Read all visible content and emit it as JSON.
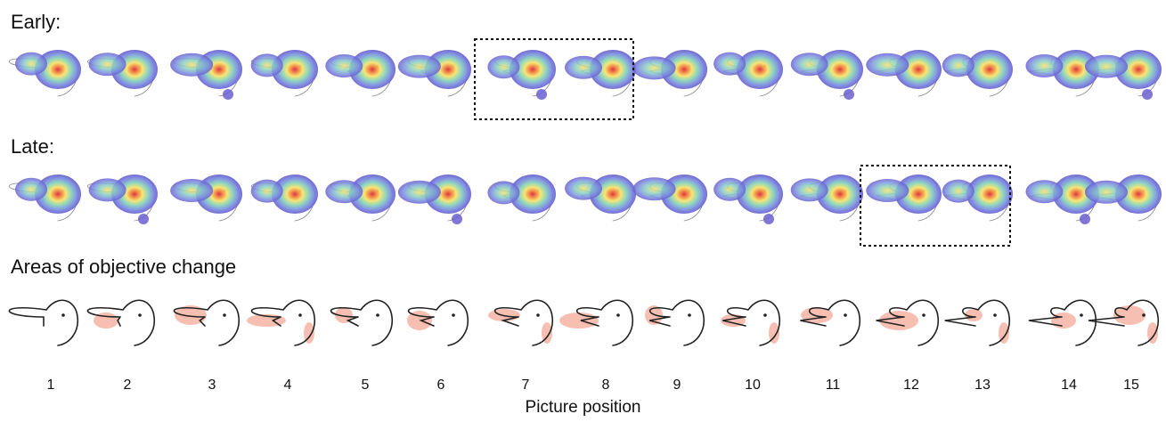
{
  "rows": {
    "early": "Early:",
    "late": "Late:",
    "changes": "Areas of objective change"
  },
  "positions": [
    "1",
    "2",
    "3",
    "4",
    "5",
    "6",
    "7",
    "8",
    "9",
    "10",
    "11",
    "12",
    "13",
    "14",
    "15"
  ],
  "xlabel": "Picture position",
  "highlights": {
    "early": [
      7,
      8
    ],
    "late": [
      12,
      13
    ]
  },
  "colors": {
    "heat_outer": "#6b63cc",
    "heat_mid": "#7fd0c8",
    "heat_core": "#f7e36b",
    "heat_hot": "#e85a3c",
    "change_area": "#f6b8a8",
    "outline": "#222222"
  }
}
